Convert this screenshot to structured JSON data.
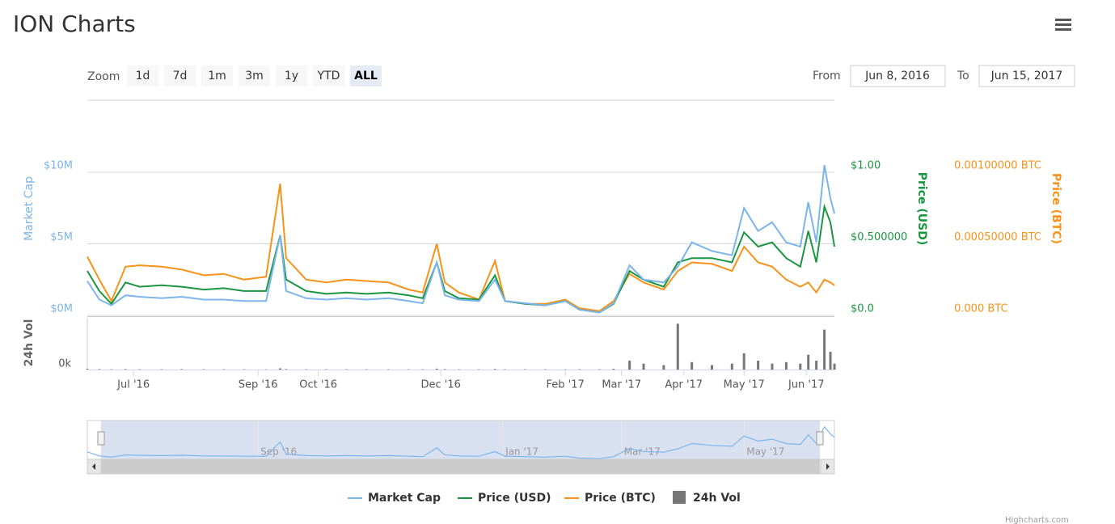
{
  "title": "ION Charts",
  "range_selector": {
    "zoom_label": "Zoom",
    "buttons": [
      "1d",
      "7d",
      "1m",
      "3m",
      "1y",
      "YTD",
      "ALL"
    ],
    "selected_button": 6,
    "from_label": "From",
    "from": "Jun 8, 2016",
    "to_label": "To",
    "to": "Jun 15, 2017"
  },
  "chart_data": {
    "type": "line",
    "x": [
      "2016-06-08",
      "2016-06-14",
      "2016-06-20",
      "2016-06-27",
      "2016-07-04",
      "2016-07-15",
      "2016-07-25",
      "2016-08-05",
      "2016-08-15",
      "2016-08-25",
      "2016-09-05",
      "2016-09-12",
      "2016-09-15",
      "2016-09-25",
      "2016-10-05",
      "2016-10-15",
      "2016-10-25",
      "2016-11-05",
      "2016-11-15",
      "2016-11-22",
      "2016-11-29",
      "2016-12-03",
      "2016-12-10",
      "2016-12-20",
      "2016-12-28",
      "2017-01-02",
      "2017-01-12",
      "2017-01-22",
      "2017-02-01",
      "2017-02-08",
      "2017-02-18",
      "2017-02-25",
      "2017-03-05",
      "2017-03-12",
      "2017-03-22",
      "2017-03-29",
      "2017-04-05",
      "2017-04-15",
      "2017-04-25",
      "2017-05-01",
      "2017-05-08",
      "2017-05-15",
      "2017-05-22",
      "2017-05-29",
      "2017-06-02",
      "2017-06-06",
      "2017-06-10",
      "2017-06-13",
      "2017-06-15"
    ],
    "series": [
      {
        "name": "Market Cap",
        "color": "#7cb5ec",
        "axis": "y",
        "values": [
          2400000,
          1100000,
          700000,
          1400000,
          1300000,
          1200000,
          1300000,
          1100000,
          1100000,
          1000000,
          1000000,
          5600000,
          1700000,
          1200000,
          1100000,
          1200000,
          1100000,
          1200000,
          1000000,
          850000,
          3700000,
          1400000,
          1100000,
          1000000,
          2500000,
          1000000,
          850000,
          700000,
          1000000,
          400000,
          200000,
          850000,
          3500000,
          2500000,
          2300000,
          3400000,
          5100000,
          4500000,
          4200000,
          7500000,
          5900000,
          6500000,
          5100000,
          4800000,
          7900000,
          5100000,
          10500000,
          8200000,
          7100000
        ]
      },
      {
        "name": "Price (USD)",
        "color": "#1a9641",
        "axis": "y2",
        "values": [
          0.31,
          0.17,
          0.08,
          0.23,
          0.2,
          0.21,
          0.2,
          0.18,
          0.19,
          0.17,
          0.17,
          0.56,
          0.25,
          0.17,
          0.15,
          0.16,
          0.15,
          0.16,
          0.14,
          0.12,
          0.37,
          0.17,
          0.12,
          0.11,
          0.28,
          0.1,
          0.08,
          0.07,
          0.1,
          0.04,
          0.02,
          0.08,
          0.31,
          0.25,
          0.2,
          0.37,
          0.4,
          0.4,
          0.37,
          0.58,
          0.48,
          0.51,
          0.4,
          0.34,
          0.59,
          0.37,
          0.76,
          0.65,
          0.48
        ]
      },
      {
        "name": "Price (BTC)",
        "color": "#f7931a",
        "axis": "y3",
        "values": [
          0.00041,
          0.00025,
          0.0001,
          0.00034,
          0.00035,
          0.00034,
          0.00032,
          0.00028,
          0.00029,
          0.00025,
          0.00027,
          0.00092,
          0.0004,
          0.00025,
          0.00023,
          0.00025,
          0.00024,
          0.00023,
          0.00018,
          0.00016,
          0.0005,
          0.00023,
          0.00016,
          0.00011,
          0.00038,
          0.0001,
          8e-05,
          8e-05,
          0.00011,
          5e-05,
          3e-05,
          0.0001,
          0.00029,
          0.00023,
          0.00018,
          0.00031,
          0.00037,
          0.00036,
          0.00031,
          0.00048,
          0.00037,
          0.00034,
          0.00025,
          0.0002,
          0.00023,
          0.00016,
          0.00025,
          0.00023,
          0.00021
        ]
      },
      {
        "name": "24h Vol",
        "color": "#777777",
        "axis": "vol",
        "type": "column",
        "values": [
          5000,
          3000,
          2000,
          3000,
          2000,
          2000,
          3000,
          2000,
          2000,
          2000,
          2000,
          8000,
          3000,
          2000,
          2000,
          2000,
          2000,
          2000,
          2000,
          2000,
          6000,
          3000,
          2000,
          2000,
          4000,
          2000,
          2000,
          2000,
          2000,
          2000,
          2000,
          5000,
          60000,
          40000,
          30000,
          310000,
          50000,
          30000,
          40000,
          110000,
          60000,
          40000,
          50000,
          40000,
          100000,
          60000,
          270000,
          120000,
          40000
        ]
      }
    ],
    "xlim": [
      "2016-06-08",
      "2017-06-15"
    ],
    "xticks": [
      {
        "value": "2016-07-01",
        "label": "Jul '16"
      },
      {
        "value": "2016-09-01",
        "label": "Sep '16"
      },
      {
        "value": "2016-10-01",
        "label": "Oct '16"
      },
      {
        "value": "2016-12-01",
        "label": "Dec '16"
      },
      {
        "value": "2017-02-01",
        "label": "Feb '17"
      },
      {
        "value": "2017-03-01",
        "label": "Mar '17"
      },
      {
        "value": "2017-04-01",
        "label": "Apr '17"
      },
      {
        "value": "2017-05-01",
        "label": "May '17"
      },
      {
        "value": "2017-06-01",
        "label": "Jun '17"
      }
    ],
    "y_label": "Market Cap",
    "ylim": [
      0,
      12000000
    ],
    "yticks": [
      {
        "value": 0,
        "label": "$0M"
      },
      {
        "value": 5000000,
        "label": "$5M"
      },
      {
        "value": 10000000,
        "label": "$10M"
      }
    ],
    "y2_label": "Price (USD)",
    "y2lim": [
      0,
      1.2
    ],
    "y2ticks": [
      {
        "value": 0,
        "label": "$0.0"
      },
      {
        "value": 0.5,
        "label": "$0.500000"
      },
      {
        "value": 1,
        "label": "$1.00"
      }
    ],
    "y3_label": "Price (BTC)",
    "y3lim": [
      0,
      0.0012
    ],
    "y3ticks": [
      {
        "value": 0,
        "label": "0.000 BTC"
      },
      {
        "value": 0.0005,
        "label": "0.00050000 BTC"
      },
      {
        "value": 0.001,
        "label": "0.00100000 BTC"
      }
    ],
    "vol_label": "24h Vol",
    "vol_ylim": [
      0,
      350000
    ],
    "vol_yticks": [
      {
        "value": 0,
        "label": "0k"
      }
    ],
    "grid": true,
    "legend": "bottom"
  },
  "navigator": {
    "xticks": [
      {
        "value": "2016-09-01",
        "label": "Sep '16"
      },
      {
        "value": "2017-01-01",
        "label": "Jan '17"
      },
      {
        "value": "2017-03-01",
        "label": "Mar '17"
      },
      {
        "value": "2017-05-01",
        "label": "May '17"
      }
    ]
  },
  "credits": "Highcharts.com"
}
